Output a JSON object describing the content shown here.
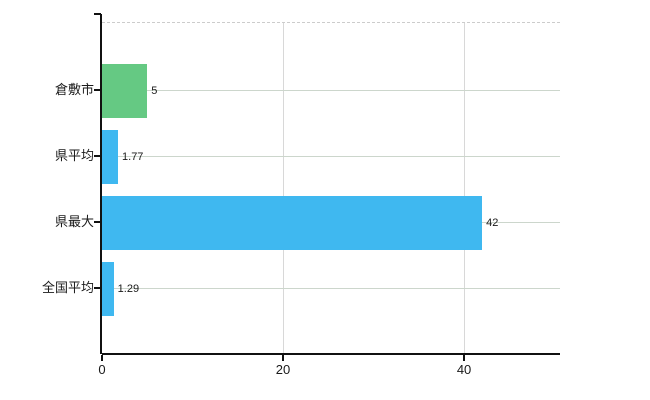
{
  "chart": {
    "background": "#ffffff",
    "accent_blue": "#3fb8f0",
    "accent_green": "#65c983",
    "grid_h_color": "#ccd6cc",
    "grid_v_color": "#d8d8d8",
    "top_border_color": "#cccccc",
    "axis_color": "#111111",
    "text_color": "#1a1a1a"
  },
  "chart_data": {
    "type": "bar",
    "orientation": "horizontal",
    "title": "",
    "xlabel": "",
    "ylabel": "",
    "categories": [
      "倉敷市",
      "県平均",
      "県最大",
      "全国平均"
    ],
    "values": [
      5,
      1.77,
      42,
      1.29
    ],
    "value_labels": [
      "5",
      "1.77",
      "42",
      "1.29"
    ],
    "bar_colors": [
      "#65c983",
      "#3fb8f0",
      "#3fb8f0",
      "#3fb8f0"
    ],
    "x_ticks": [
      0,
      20,
      40
    ],
    "x_tick_labels": [
      "0",
      "20",
      "40"
    ],
    "xlim": [
      0,
      50.6
    ],
    "grid": true,
    "legend": false
  }
}
